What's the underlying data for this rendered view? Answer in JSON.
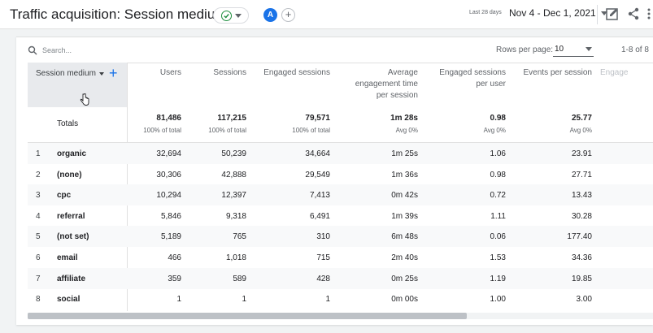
{
  "header": {
    "title": "Traffic acquisition: Session medium",
    "compare_avatar": "A",
    "date_label": "Last 28 days",
    "date_range": "Nov 4 - Dec 1, 2021"
  },
  "table_controls": {
    "search_placeholder": "Search...",
    "rows_per_page_label": "Rows per page:",
    "rows_per_page_value": "10",
    "range_text": "1-8 of 8"
  },
  "dimension_header": "Session medium",
  "columns": [
    {
      "lines": [
        "Users"
      ]
    },
    {
      "lines": [
        "Sessions"
      ]
    },
    {
      "lines": [
        "Engaged sessions"
      ]
    },
    {
      "lines": [
        "Average",
        "engagement time",
        "per session"
      ]
    },
    {
      "lines": [
        "Engaged sessions",
        "per user"
      ]
    },
    {
      "lines": [
        "Events per session"
      ]
    },
    {
      "lines": [
        "Engage"
      ]
    }
  ],
  "totals": {
    "label": "Totals",
    "values": [
      "81,486",
      "117,215",
      "79,571",
      "1m 28s",
      "0.98",
      "25.77"
    ],
    "subs": [
      "100% of total",
      "100% of total",
      "100% of total",
      "Avg 0%",
      "Avg 0%",
      "Avg 0%"
    ]
  },
  "rows": [
    {
      "idx": "1",
      "medium": "organic",
      "values": [
        "32,694",
        "50,239",
        "34,664",
        "1m 25s",
        "1.06",
        "23.91"
      ]
    },
    {
      "idx": "2",
      "medium": "(none)",
      "values": [
        "30,306",
        "42,888",
        "29,549",
        "1m 36s",
        "0.98",
        "27.71"
      ]
    },
    {
      "idx": "3",
      "medium": "cpc",
      "values": [
        "10,294",
        "12,397",
        "7,413",
        "0m 42s",
        "0.72",
        "13.43"
      ]
    },
    {
      "idx": "4",
      "medium": "referral",
      "values": [
        "5,846",
        "9,318",
        "6,491",
        "1m 39s",
        "1.11",
        "30.28"
      ]
    },
    {
      "idx": "5",
      "medium": "(not set)",
      "values": [
        "5,189",
        "765",
        "310",
        "6m 48s",
        "0.06",
        "177.40"
      ]
    },
    {
      "idx": "6",
      "medium": "email",
      "values": [
        "466",
        "1,018",
        "715",
        "2m 40s",
        "1.53",
        "34.36"
      ]
    },
    {
      "idx": "7",
      "medium": "affiliate",
      "values": [
        "359",
        "589",
        "428",
        "0m 25s",
        "1.19",
        "19.85"
      ]
    },
    {
      "idx": "8",
      "medium": "social",
      "values": [
        "1",
        "1",
        "1",
        "0m 00s",
        "1.00",
        "3.00"
      ]
    }
  ],
  "colors": {
    "accent": "#1a73e8",
    "success": "#1e8e3e",
    "row_shade": "#f8f9fa"
  }
}
